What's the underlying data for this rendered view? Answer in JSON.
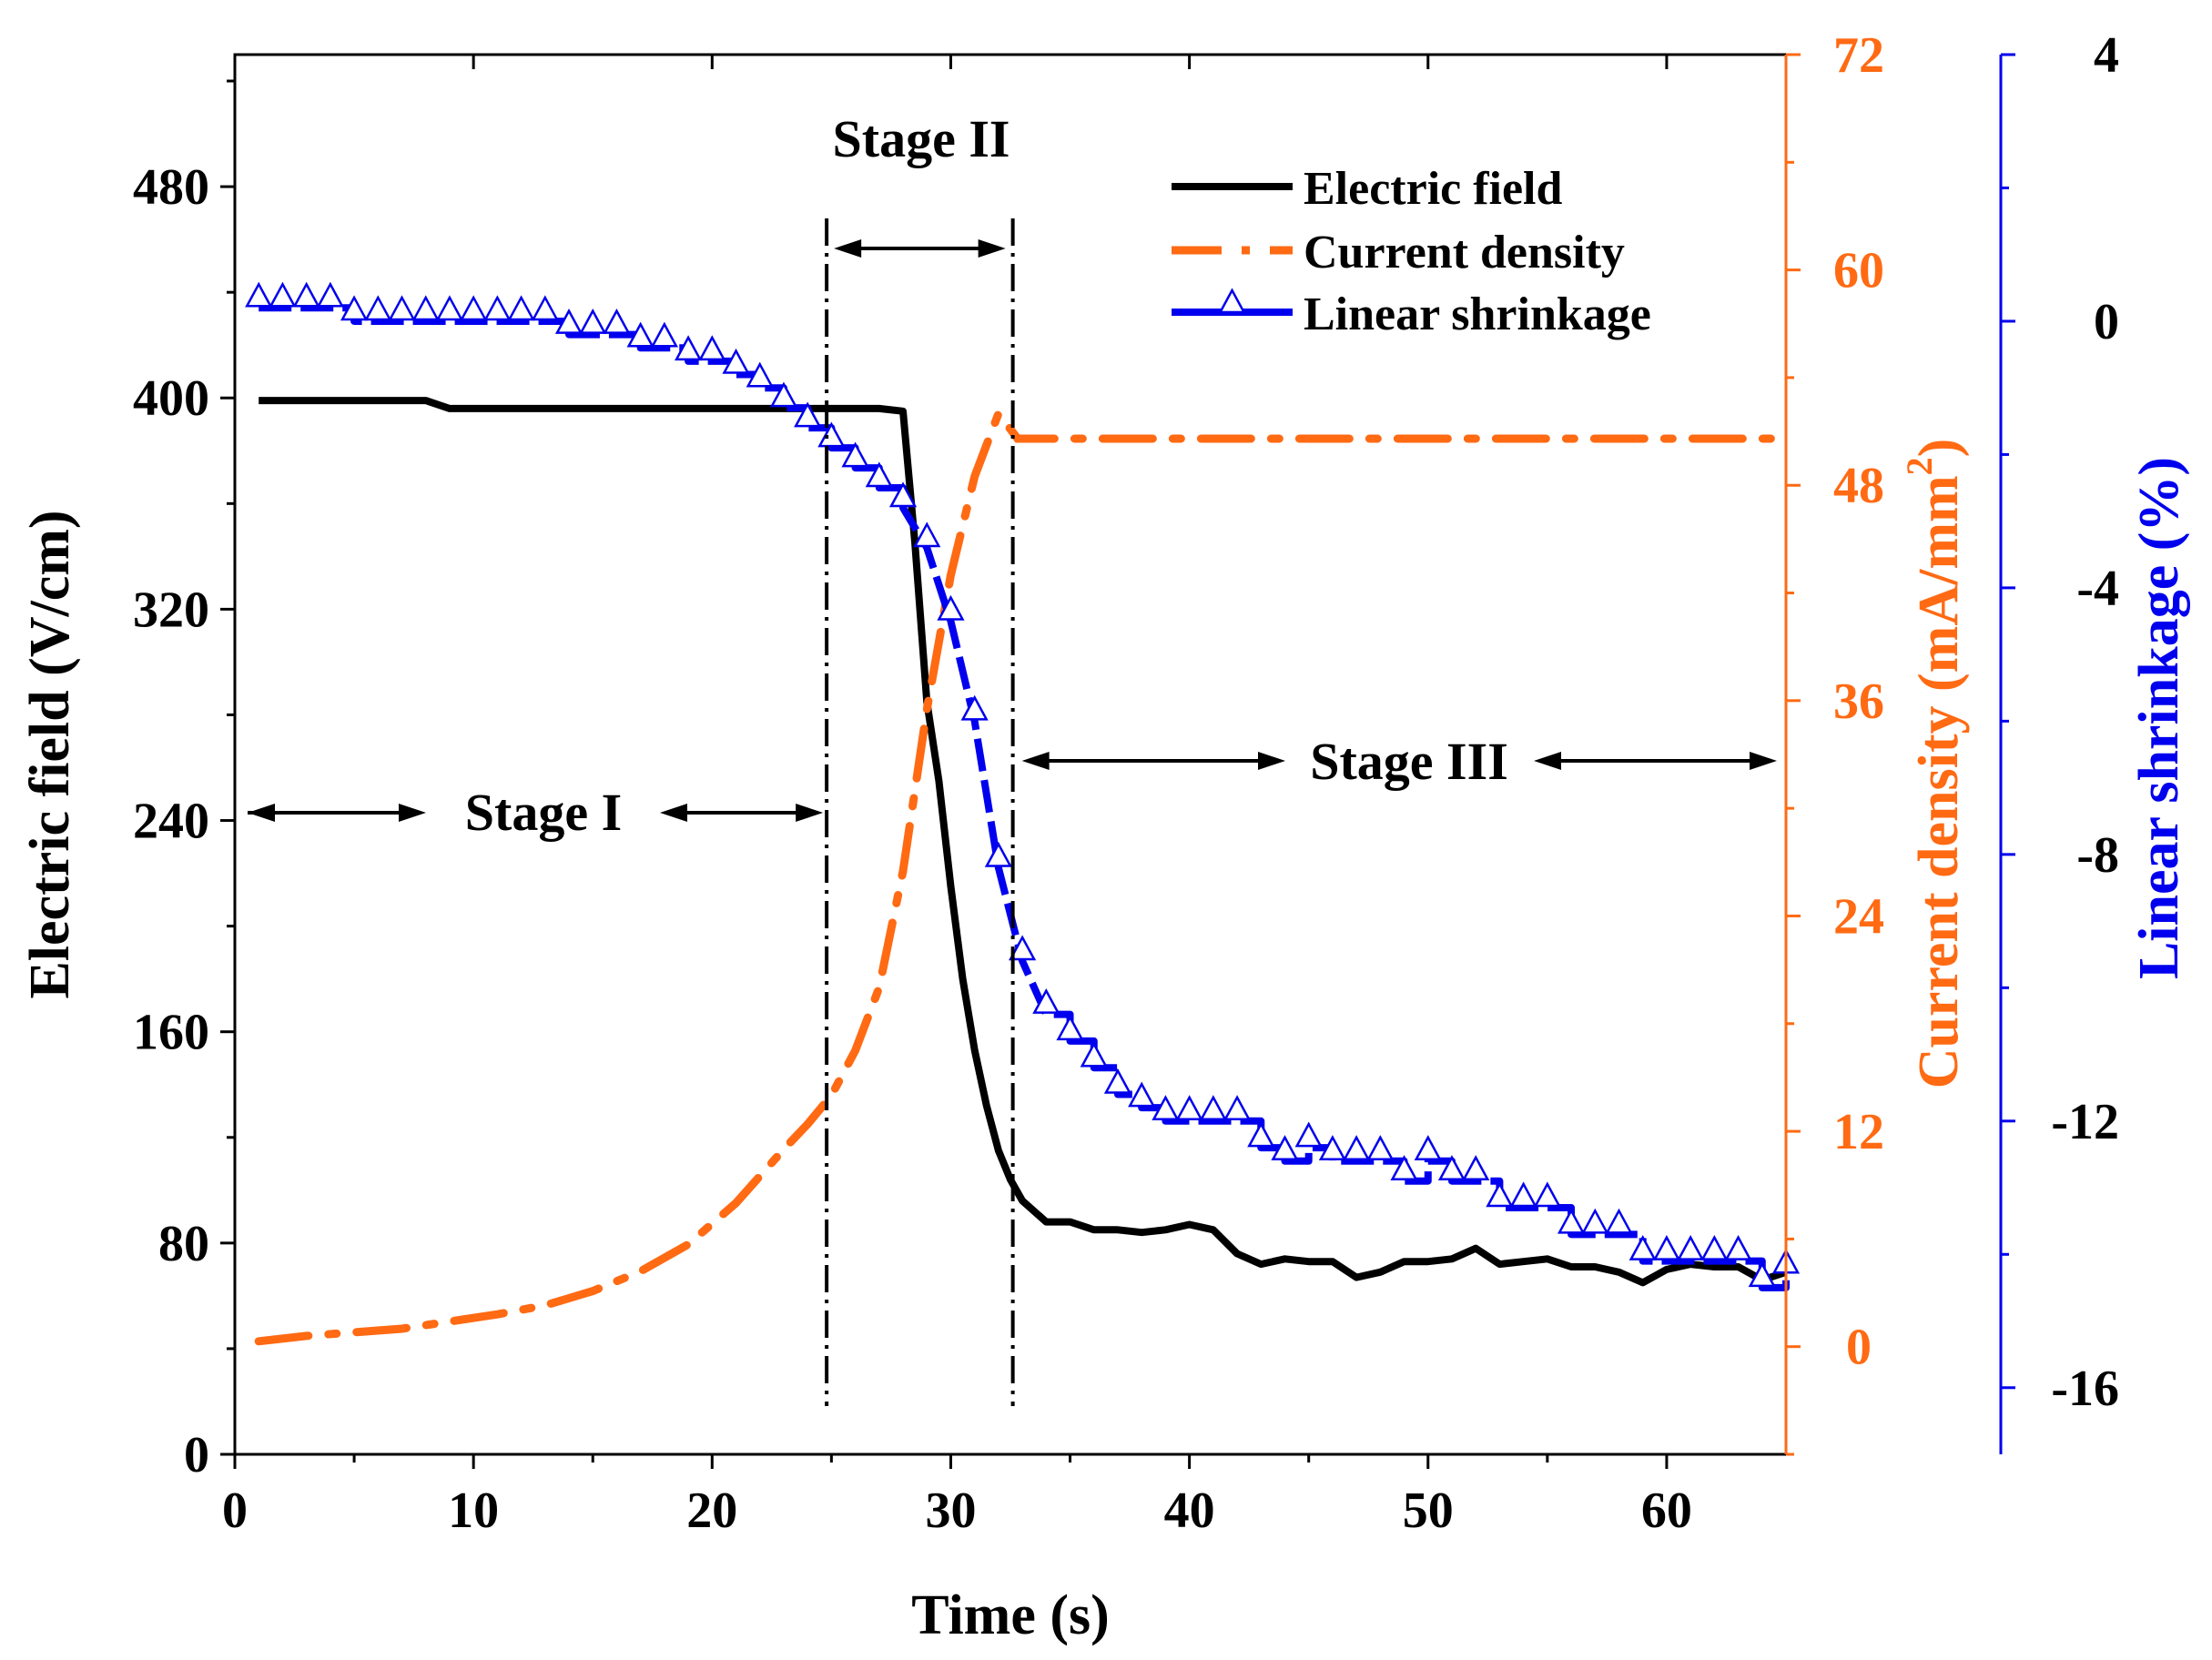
{
  "chart_data": {
    "type": "line",
    "xlabel": "Time (s)",
    "ylabel_left": "Electric field (V/cm)",
    "ylabel_right1": "Current density (mA/mm",
    "ylabel_right1_sup": "2",
    "ylabel_right1_close": ")",
    "ylabel_right2": "Linear shrinkage (%)",
    "xlim": [
      0,
      65
    ],
    "ylim_left": [
      0,
      530
    ],
    "ylim_right1": [
      -6,
      72
    ],
    "ylim_right2": [
      -17,
      4
    ],
    "xticks": [
      0,
      10,
      20,
      30,
      40,
      50,
      60
    ],
    "yticks_left": [
      0,
      80,
      160,
      240,
      320,
      400,
      480
    ],
    "yticks_right1": [
      0,
      12,
      24,
      36,
      48,
      60,
      72
    ],
    "yticks_right2": [
      -16,
      -12,
      -8,
      -4,
      0,
      4
    ],
    "colors": {
      "electric": "#000000",
      "current": "#ff6a13",
      "shrink": "#0000ee"
    },
    "legend_position": "top-right",
    "series": [
      {
        "name": "Electric field",
        "axis": "left",
        "x": [
          1,
          8,
          9,
          10,
          15,
          20,
          25,
          27,
          28,
          28.5,
          29,
          29.5,
          30,
          30.5,
          31,
          31.5,
          32,
          32.5,
          33,
          34,
          35,
          36,
          37,
          38,
          39,
          40,
          41,
          42,
          43,
          44,
          45,
          46,
          47,
          48,
          49,
          50,
          51,
          52,
          53,
          54,
          55,
          56,
          57,
          58,
          59,
          60,
          61,
          62,
          63,
          64,
          65
        ],
        "y": [
          399,
          399,
          396,
          396,
          396,
          396,
          396,
          396,
          395,
          345,
          285,
          255,
          215,
          180,
          153,
          132,
          115,
          104,
          96,
          88,
          88,
          85,
          85,
          84,
          85,
          87,
          85,
          76,
          72,
          74,
          73,
          73,
          67,
          69,
          73,
          73,
          74,
          78,
          72,
          73,
          74,
          71,
          71,
          69,
          65,
          70,
          72,
          71,
          71,
          66,
          69
        ]
      },
      {
        "name": "Current density",
        "axis": "right1",
        "x": [
          1,
          3,
          5,
          7,
          9,
          11,
          13,
          15,
          17,
          19,
          21,
          22,
          23,
          24,
          25,
          26,
          27,
          28,
          29,
          30,
          31,
          32,
          32.8,
          35,
          40,
          45,
          50,
          55,
          60,
          65
        ],
        "y": [
          0.3,
          0.6,
          0.8,
          1.0,
          1.4,
          1.8,
          2.3,
          3.1,
          4.2,
          5.7,
          8.0,
          9.5,
          11.0,
          12.4,
          14.0,
          16.5,
          20.0,
          26.5,
          35.5,
          43.0,
          48.5,
          52.0,
          50.6,
          50.6,
          50.6,
          50.6,
          50.6,
          50.6,
          50.6,
          50.6
        ]
      },
      {
        "name": "Linear shrinkage",
        "axis": "right2",
        "x": [
          1,
          2,
          3,
          4,
          5,
          6,
          7,
          8,
          9,
          10,
          11,
          12,
          13,
          14,
          15,
          16,
          17,
          18,
          19,
          20,
          21,
          22,
          23,
          24,
          25,
          26,
          27,
          28,
          29,
          30,
          31,
          32,
          33,
          34,
          35,
          36,
          37,
          38,
          39,
          40,
          41,
          42,
          43,
          44,
          45,
          46,
          47,
          48,
          49,
          50,
          51,
          52,
          53,
          54,
          55,
          56,
          57,
          58,
          59,
          60,
          61,
          62,
          63,
          64,
          65
        ],
        "y": [
          0.2,
          0.2,
          0.2,
          0.2,
          0.0,
          0.0,
          0.0,
          0.0,
          0.0,
          0.0,
          0.0,
          0.0,
          0.0,
          -0.2,
          -0.2,
          -0.2,
          -0.4,
          -0.4,
          -0.6,
          -0.6,
          -0.8,
          -1.0,
          -1.3,
          -1.6,
          -1.9,
          -2.2,
          -2.5,
          -2.8,
          -3.4,
          -4.5,
          -6.0,
          -8.2,
          -9.6,
          -10.4,
          -10.8,
          -11.2,
          -11.6,
          -11.8,
          -12.0,
          -12.0,
          -12.0,
          -12.0,
          -12.4,
          -12.6,
          -12.4,
          -12.6,
          -12.6,
          -12.6,
          -12.9,
          -12.6,
          -12.9,
          -12.9,
          -13.3,
          -13.3,
          -13.3,
          -13.7,
          -13.7,
          -13.7,
          -14.1,
          -14.1,
          -14.1,
          -14.1,
          -14.1,
          -14.5,
          -14.3
        ]
      }
    ],
    "stage_lines_x": [
      24.8,
      32.6
    ],
    "annotations": {
      "stage1": "Stage I",
      "stage2": "Stage II",
      "stage3": "Stage III"
    }
  }
}
